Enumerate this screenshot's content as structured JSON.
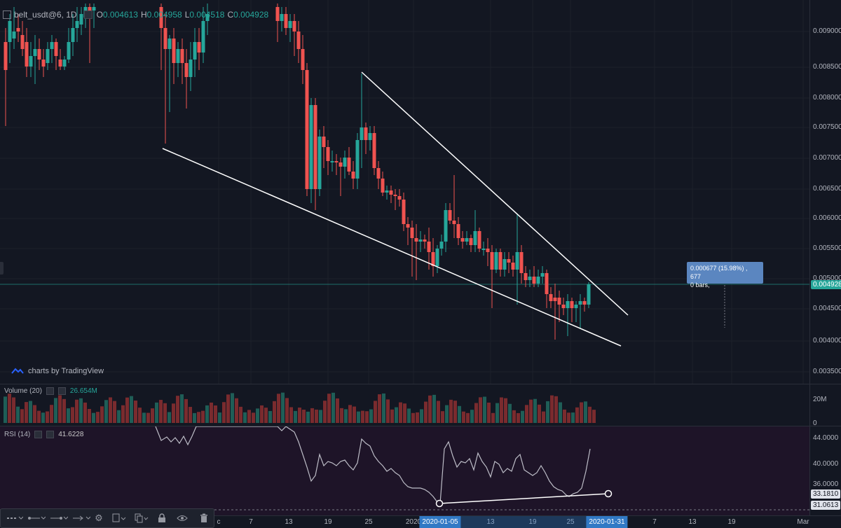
{
  "ohlc": {
    "symbol": "belt_usdt@6, 1D",
    "o_prefix": "O",
    "o_value": "0.004613",
    "h_prefix": "H",
    "h_value": "0.004958",
    "l_prefix": "L",
    "l_value": "0.004518",
    "c_prefix": "C",
    "c_value": "0.004928"
  },
  "watermark": "charts by TradingView",
  "price_axis": {
    "labels": [
      "0.009000",
      "0.008500",
      "0.008000",
      "0.007500",
      "0.007000",
      "0.006500",
      "0.006000",
      "0.005500",
      "0.005000",
      "0.004500",
      "0.004000",
      "0.003500"
    ],
    "current_price": "0.004928"
  },
  "measure_tooltip": {
    "line1": "0.000677 (15.98%) , 677",
    "line2": "0 bars,"
  },
  "volume": {
    "title": "Volume (20)",
    "value": "26.654M",
    "axis_labels": [
      "20M",
      "0"
    ]
  },
  "rsi": {
    "title": "RSI (14)",
    "value": "41.6228",
    "axis_labels": [
      "44.0000",
      "40.0000",
      "36.0000"
    ],
    "tag_value": "33.1810",
    "tag_low": "31.0613"
  },
  "time_axis": {
    "labels": [
      "c",
      "7",
      "13",
      "19",
      "25",
      "2020",
      "13",
      "19",
      "25",
      "7",
      "13",
      "19",
      "Mar"
    ],
    "highlight_start": "2020-01-05",
    "highlight_end": "2020-01-31"
  },
  "toolbar": {
    "icons": [
      "line-style-icon",
      "line-start-icon",
      "line-end-icon",
      "arrow-end-icon",
      "settings-gear-icon",
      "object-tree-icon",
      "clone-icon",
      "lock-icon",
      "eye-icon",
      "trash-icon"
    ]
  },
  "colors": {
    "background": "#131722",
    "up": "#26a69a",
    "down": "#ef5350",
    "rsi_background": "#1e1428",
    "drawing": "#ffffff",
    "accent_blue": "#3179c5"
  }
}
